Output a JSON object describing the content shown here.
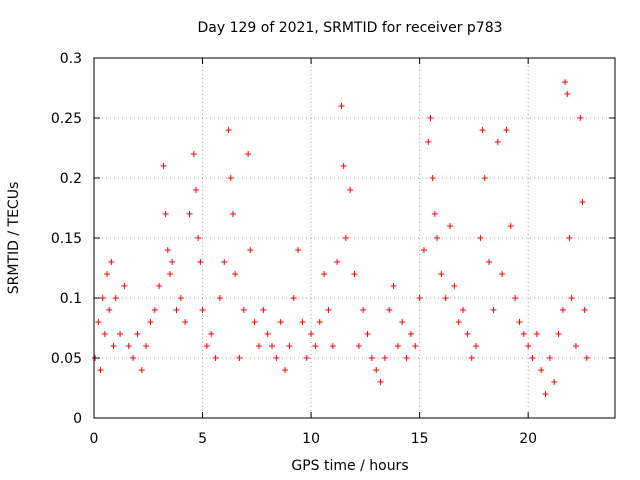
{
  "chart_data": {
    "type": "scatter",
    "title": "Day 129 of 2021, SRMTID for receiver p783",
    "xlabel": "GPS time / hours",
    "ylabel": "SRMTID / TECUs",
    "xlim": [
      0,
      24
    ],
    "ylim": [
      0,
      0.3
    ],
    "x_ticks": [
      0,
      5,
      10,
      15,
      20
    ],
    "y_ticks": [
      0,
      0.05,
      0.1,
      0.15,
      0.2,
      0.25,
      0.3
    ],
    "x_tick_labels": [
      "0",
      "5",
      "10",
      "15",
      "20"
    ],
    "y_tick_labels": [
      "0",
      "0.05",
      "0.1",
      "0.15",
      "0.2",
      "0.25",
      "0.3"
    ],
    "grid": true,
    "marker": "+",
    "marker_color": "#ff0000",
    "x_range_of_data": [
      0,
      22.7
    ],
    "series": [
      {
        "name": "SRMTID",
        "points": [
          [
            0.05,
            0.05
          ],
          [
            0.2,
            0.08
          ],
          [
            0.3,
            0.04
          ],
          [
            0.4,
            0.1
          ],
          [
            0.5,
            0.07
          ],
          [
            0.6,
            0.12
          ],
          [
            0.7,
            0.09
          ],
          [
            0.8,
            0.13
          ],
          [
            0.9,
            0.06
          ],
          [
            1.0,
            0.1
          ],
          [
            1.2,
            0.07
          ],
          [
            1.4,
            0.11
          ],
          [
            1.6,
            0.06
          ],
          [
            1.8,
            0.05
          ],
          [
            2.0,
            0.07
          ],
          [
            2.2,
            0.04
          ],
          [
            2.4,
            0.06
          ],
          [
            2.6,
            0.08
          ],
          [
            2.8,
            0.09
          ],
          [
            3.0,
            0.11
          ],
          [
            3.2,
            0.21
          ],
          [
            3.3,
            0.17
          ],
          [
            3.4,
            0.14
          ],
          [
            3.5,
            0.12
          ],
          [
            3.6,
            0.13
          ],
          [
            3.8,
            0.09
          ],
          [
            4.0,
            0.1
          ],
          [
            4.2,
            0.08
          ],
          [
            4.4,
            0.17
          ],
          [
            4.6,
            0.22
          ],
          [
            4.7,
            0.19
          ],
          [
            4.8,
            0.15
          ],
          [
            4.9,
            0.13
          ],
          [
            5.0,
            0.09
          ],
          [
            5.2,
            0.06
          ],
          [
            5.4,
            0.07
          ],
          [
            5.6,
            0.05
          ],
          [
            5.8,
            0.1
          ],
          [
            6.0,
            0.13
          ],
          [
            6.2,
            0.24
          ],
          [
            6.3,
            0.2
          ],
          [
            6.4,
            0.17
          ],
          [
            6.5,
            0.12
          ],
          [
            6.7,
            0.05
          ],
          [
            6.9,
            0.09
          ],
          [
            7.1,
            0.22
          ],
          [
            7.2,
            0.14
          ],
          [
            7.4,
            0.08
          ],
          [
            7.6,
            0.06
          ],
          [
            7.8,
            0.09
          ],
          [
            8.0,
            0.07
          ],
          [
            8.2,
            0.06
          ],
          [
            8.4,
            0.05
          ],
          [
            8.6,
            0.08
          ],
          [
            8.8,
            0.04
          ],
          [
            9.0,
            0.06
          ],
          [
            9.2,
            0.1
          ],
          [
            9.4,
            0.14
          ],
          [
            9.6,
            0.08
          ],
          [
            9.8,
            0.05
          ],
          [
            10.0,
            0.07
          ],
          [
            10.2,
            0.06
          ],
          [
            10.4,
            0.08
          ],
          [
            10.6,
            0.12
          ],
          [
            10.8,
            0.09
          ],
          [
            11.0,
            0.06
          ],
          [
            11.2,
            0.13
          ],
          [
            11.4,
            0.26
          ],
          [
            11.5,
            0.21
          ],
          [
            11.6,
            0.15
          ],
          [
            11.8,
            0.19
          ],
          [
            12.0,
            0.12
          ],
          [
            12.2,
            0.06
          ],
          [
            12.4,
            0.09
          ],
          [
            12.6,
            0.07
          ],
          [
            12.8,
            0.05
          ],
          [
            13.0,
            0.04
          ],
          [
            13.2,
            0.03
          ],
          [
            13.4,
            0.05
          ],
          [
            13.6,
            0.09
          ],
          [
            13.8,
            0.11
          ],
          [
            14.0,
            0.06
          ],
          [
            14.2,
            0.08
          ],
          [
            14.4,
            0.05
          ],
          [
            14.6,
            0.07
          ],
          [
            14.8,
            0.06
          ],
          [
            15.0,
            0.1
          ],
          [
            15.2,
            0.14
          ],
          [
            15.4,
            0.23
          ],
          [
            15.5,
            0.25
          ],
          [
            15.6,
            0.2
          ],
          [
            15.7,
            0.17
          ],
          [
            15.8,
            0.15
          ],
          [
            16.0,
            0.12
          ],
          [
            16.2,
            0.1
          ],
          [
            16.4,
            0.16
          ],
          [
            16.6,
            0.11
          ],
          [
            16.8,
            0.08
          ],
          [
            17.0,
            0.09
          ],
          [
            17.2,
            0.07
          ],
          [
            17.4,
            0.05
          ],
          [
            17.6,
            0.06
          ],
          [
            17.8,
            0.15
          ],
          [
            17.9,
            0.24
          ],
          [
            18.0,
            0.2
          ],
          [
            18.2,
            0.13
          ],
          [
            18.4,
            0.09
          ],
          [
            18.6,
            0.23
          ],
          [
            18.8,
            0.12
          ],
          [
            19.0,
            0.24
          ],
          [
            19.2,
            0.16
          ],
          [
            19.4,
            0.1
          ],
          [
            19.6,
            0.08
          ],
          [
            19.8,
            0.07
          ],
          [
            20.0,
            0.06
          ],
          [
            20.2,
            0.05
          ],
          [
            20.4,
            0.07
          ],
          [
            20.6,
            0.04
          ],
          [
            20.8,
            0.02
          ],
          [
            21.0,
            0.05
          ],
          [
            21.2,
            0.03
          ],
          [
            21.4,
            0.07
          ],
          [
            21.6,
            0.09
          ],
          [
            21.7,
            0.28
          ],
          [
            21.8,
            0.27
          ],
          [
            21.9,
            0.15
          ],
          [
            22.0,
            0.1
          ],
          [
            22.2,
            0.06
          ],
          [
            22.4,
            0.25
          ],
          [
            22.5,
            0.18
          ],
          [
            22.6,
            0.09
          ],
          [
            22.7,
            0.05
          ]
        ]
      }
    ]
  }
}
